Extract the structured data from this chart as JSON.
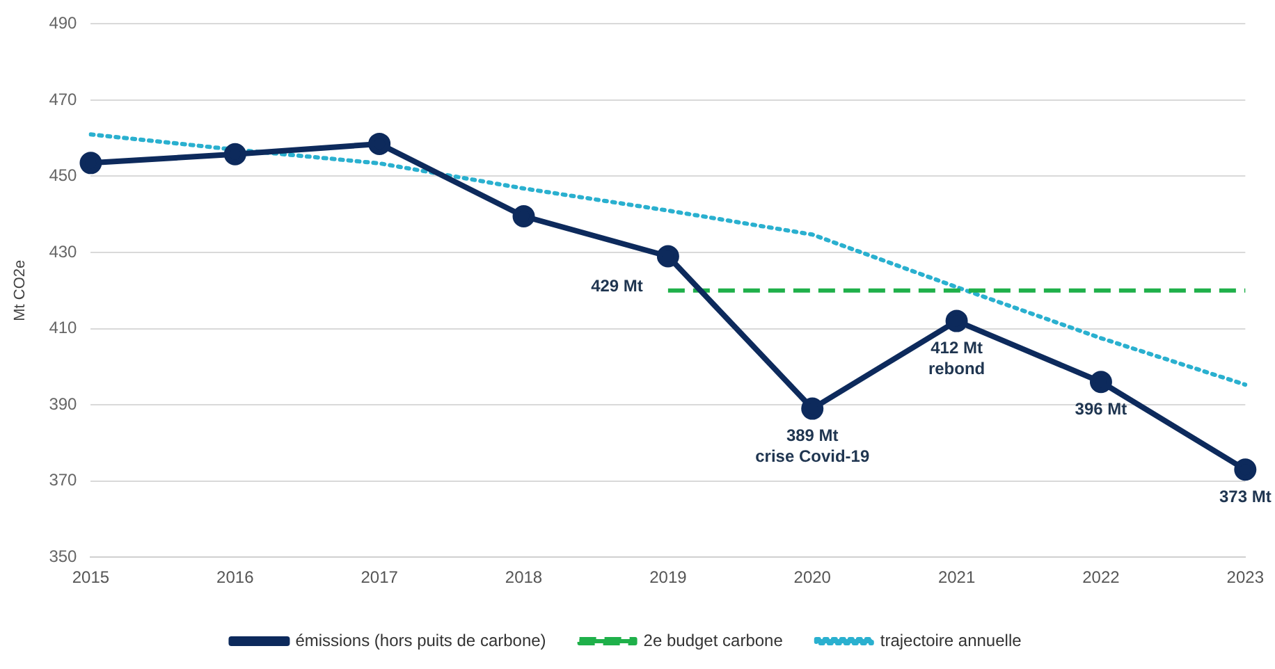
{
  "chart_data": {
    "type": "line",
    "ylabel": "Mt CO2e",
    "categories": [
      "2015",
      "2016",
      "2017",
      "2018",
      "2019",
      "2020",
      "2021",
      "2022",
      "2023"
    ],
    "ylim": [
      350,
      490
    ],
    "yticks": [
      350,
      370,
      390,
      410,
      430,
      450,
      470,
      490
    ],
    "grid": "y",
    "legend": "bottom",
    "series": [
      {
        "name": "émissions (hors puits de carbone)",
        "color": "#0d2a5c",
        "marker": "circle",
        "line_style": "solid",
        "values": [
          453.5,
          455.8,
          458.5,
          439.5,
          429,
          389,
          412,
          396,
          373
        ]
      },
      {
        "name": "2e budget carbone",
        "color": "#1fb04a",
        "marker": "none",
        "line_style": "dashed",
        "values": [
          null,
          null,
          null,
          null,
          420,
          420,
          420,
          420,
          420
        ]
      },
      {
        "name": "trajectoire annuelle",
        "color": "#2ab0cf",
        "marker": "none",
        "line_style": "dotted",
        "values": [
          461,
          457,
          453.4,
          446.8,
          441,
          434.7,
          420.9,
          407.5,
          395.3
        ]
      }
    ],
    "annotations": [
      {
        "text": "429 Mt",
        "x": "2019",
        "y": 429
      },
      {
        "text": "389 Mt\ncrise Covid-19",
        "x": "2020",
        "y": 389
      },
      {
        "text": "412 Mt\nrebond",
        "x": "2021",
        "y": 412
      },
      {
        "text": "396 Mt",
        "x": "2022",
        "y": 396
      },
      {
        "text": "373 Mt",
        "x": "2023",
        "y": 373
      }
    ]
  }
}
